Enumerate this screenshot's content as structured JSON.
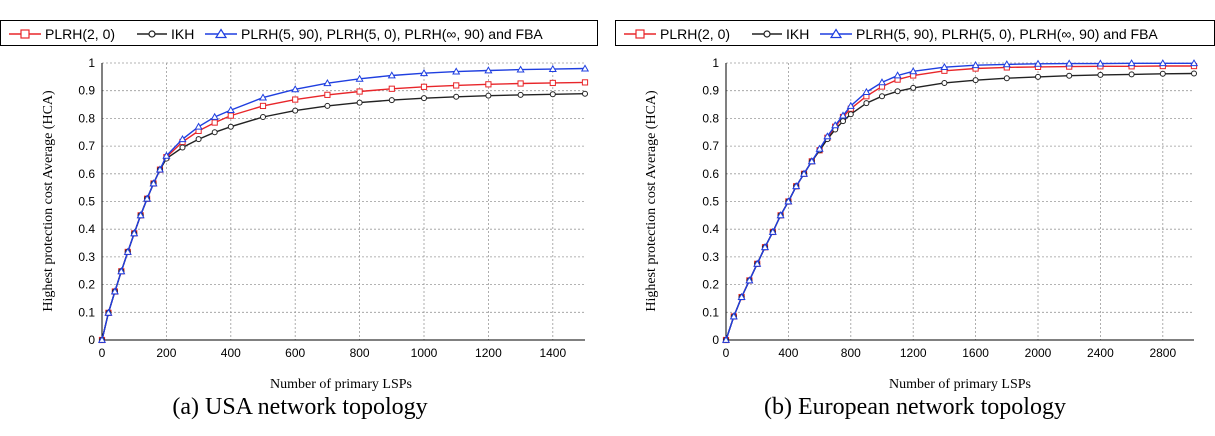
{
  "chart_data": [
    {
      "type": "line",
      "caption": "(a) USA network topology",
      "xlabel": "Number of primary LSPs",
      "ylabel": "Highest protection cost Average (HCA)",
      "xlim": [
        0,
        1500
      ],
      "ylim": [
        0,
        1
      ],
      "xticks": [
        "0",
        "200",
        "400",
        "600",
        "800",
        "1000",
        "1200",
        "1400"
      ],
      "yticks": [
        "0",
        "0.1",
        "0.2",
        "0.3",
        "0.4",
        "0.5",
        "0.6",
        "0.7",
        "0.8",
        "0.9",
        "1"
      ],
      "grid": true,
      "legend_position": "top",
      "series": [
        {
          "name": "PLRH(2, 0)",
          "color": "#e8262a",
          "marker": "square",
          "x": [
            0,
            20,
            40,
            60,
            80,
            100,
            120,
            140,
            160,
            180,
            200,
            250,
            300,
            350,
            400,
            500,
            600,
            700,
            800,
            900,
            1000,
            1100,
            1200,
            1300,
            1400,
            1500
          ],
          "y": [
            0,
            0.098,
            0.175,
            0.248,
            0.318,
            0.385,
            0.45,
            0.51,
            0.565,
            0.615,
            0.66,
            0.715,
            0.755,
            0.785,
            0.81,
            0.845,
            0.868,
            0.885,
            0.897,
            0.907,
            0.914,
            0.919,
            0.923,
            0.926,
            0.928,
            0.93
          ]
        },
        {
          "name": "IKH",
          "color": "#222222",
          "marker": "circle",
          "x": [
            0,
            20,
            40,
            60,
            80,
            100,
            120,
            140,
            160,
            180,
            200,
            250,
            300,
            350,
            400,
            500,
            600,
            700,
            800,
            900,
            1000,
            1100,
            1200,
            1300,
            1400,
            1500
          ],
          "y": [
            0,
            0.098,
            0.175,
            0.248,
            0.318,
            0.385,
            0.45,
            0.51,
            0.565,
            0.615,
            0.655,
            0.695,
            0.725,
            0.75,
            0.77,
            0.805,
            0.828,
            0.845,
            0.857,
            0.866,
            0.873,
            0.878,
            0.882,
            0.885,
            0.887,
            0.889
          ]
        },
        {
          "name": "PLRH(5, 90), PLRH(5, 0), PLRH(∞, 90) and FBA",
          "color": "#1f3fe0",
          "marker": "triangle",
          "x": [
            0,
            20,
            40,
            60,
            80,
            100,
            120,
            140,
            160,
            180,
            200,
            250,
            300,
            350,
            400,
            500,
            600,
            700,
            800,
            900,
            1000,
            1100,
            1200,
            1300,
            1400,
            1500
          ],
          "y": [
            0,
            0.098,
            0.175,
            0.248,
            0.318,
            0.385,
            0.45,
            0.51,
            0.565,
            0.615,
            0.665,
            0.725,
            0.77,
            0.805,
            0.83,
            0.875,
            0.905,
            0.927,
            0.943,
            0.955,
            0.963,
            0.969,
            0.973,
            0.976,
            0.978,
            0.98
          ]
        }
      ]
    },
    {
      "type": "line",
      "caption": "(b) European network topology",
      "xlabel": "Number of primary LSPs",
      "ylabel": "Highest protection cost Average (HCA)",
      "xlim": [
        0,
        3000
      ],
      "ylim": [
        0,
        1
      ],
      "xticks": [
        "0",
        "400",
        "800",
        "1200",
        "1600",
        "2000",
        "2400",
        "2800"
      ],
      "yticks": [
        "0",
        "0.1",
        "0.2",
        "0.3",
        "0.4",
        "0.5",
        "0.6",
        "0.7",
        "0.8",
        "0.9",
        "1"
      ],
      "grid": true,
      "legend_position": "top",
      "series": [
        {
          "name": "PLRH(2, 0)",
          "color": "#e8262a",
          "marker": "square",
          "x": [
            0,
            50,
            100,
            150,
            200,
            250,
            300,
            350,
            400,
            450,
            500,
            550,
            600,
            650,
            700,
            750,
            800,
            900,
            1000,
            1100,
            1200,
            1400,
            1600,
            1800,
            2000,
            2200,
            2400,
            2600,
            2800,
            3000
          ],
          "y": [
            0,
            0.085,
            0.155,
            0.215,
            0.275,
            0.335,
            0.39,
            0.45,
            0.5,
            0.555,
            0.6,
            0.645,
            0.685,
            0.73,
            0.77,
            0.805,
            0.835,
            0.88,
            0.915,
            0.94,
            0.955,
            0.972,
            0.98,
            0.984,
            0.986,
            0.987,
            0.988,
            0.988,
            0.989,
            0.989
          ]
        },
        {
          "name": "IKH",
          "color": "#222222",
          "marker": "circle",
          "x": [
            0,
            50,
            100,
            150,
            200,
            250,
            300,
            350,
            400,
            450,
            500,
            550,
            600,
            650,
            700,
            750,
            800,
            900,
            1000,
            1100,
            1200,
            1400,
            1600,
            1800,
            2000,
            2200,
            2400,
            2600,
            2800,
            3000
          ],
          "y": [
            0,
            0.085,
            0.155,
            0.215,
            0.275,
            0.335,
            0.39,
            0.45,
            0.5,
            0.555,
            0.6,
            0.645,
            0.685,
            0.725,
            0.76,
            0.79,
            0.815,
            0.855,
            0.88,
            0.898,
            0.91,
            0.928,
            0.938,
            0.945,
            0.95,
            0.954,
            0.957,
            0.959,
            0.961,
            0.962
          ]
        },
        {
          "name": "PLRH(5, 90), PLRH(5, 0), PLRH(∞, 90) and FBA",
          "color": "#1f3fe0",
          "marker": "triangle",
          "x": [
            0,
            50,
            100,
            150,
            200,
            250,
            300,
            350,
            400,
            450,
            500,
            550,
            600,
            650,
            700,
            750,
            800,
            900,
            1000,
            1100,
            1200,
            1400,
            1600,
            1800,
            2000,
            2200,
            2400,
            2600,
            2800,
            3000
          ],
          "y": [
            0,
            0.085,
            0.155,
            0.215,
            0.275,
            0.335,
            0.39,
            0.45,
            0.5,
            0.555,
            0.6,
            0.645,
            0.69,
            0.735,
            0.775,
            0.81,
            0.845,
            0.895,
            0.93,
            0.955,
            0.97,
            0.985,
            0.992,
            0.995,
            0.997,
            0.998,
            0.998,
            0.999,
            0.999,
            0.999
          ]
        }
      ]
    }
  ]
}
